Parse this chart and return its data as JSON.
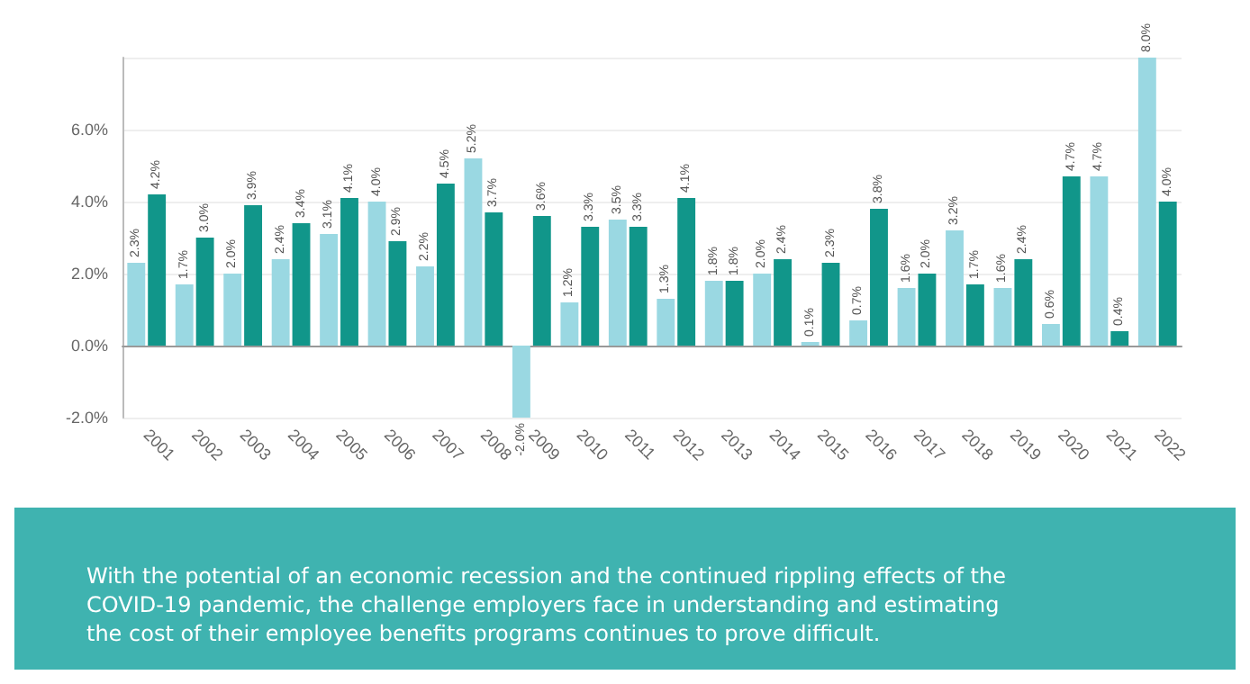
{
  "chart_data": {
    "type": "bar",
    "categories": [
      "2001",
      "2002",
      "2003",
      "2004",
      "2005",
      "2006",
      "2007",
      "2008",
      "2009",
      "2010",
      "2011",
      "2012",
      "2013",
      "2014",
      "2015",
      "2016",
      "2017",
      "2018",
      "2019",
      "2020",
      "2021",
      "2022"
    ],
    "series": [
      {
        "color": "#9ad8e2",
        "values": [
          2.3,
          1.7,
          2.0,
          2.4,
          3.1,
          4.0,
          2.2,
          5.2,
          -2.0,
          1.2,
          3.5,
          1.3,
          1.8,
          2.0,
          0.1,
          0.7,
          1.6,
          3.2,
          1.6,
          0.6,
          4.7,
          8.0
        ],
        "value_labels": [
          "2.3%",
          "1.7%",
          "2.0%",
          "2.4%",
          "3.1%",
          "4.0%",
          "2.2%",
          "5.2%",
          "-2.0%",
          "1.2%",
          "3.5%",
          "1.3%",
          "1.8%",
          "2.0%",
          "0.1%",
          "0.7%",
          "1.6%",
          "3.2%",
          "1.6%",
          "0.6%",
          "4.7%",
          "8.0%"
        ]
      },
      {
        "color": "#11968a",
        "values": [
          4.2,
          3.0,
          3.9,
          3.4,
          4.1,
          2.9,
          4.5,
          3.7,
          3.6,
          3.3,
          3.3,
          4.1,
          1.8,
          2.4,
          2.3,
          3.8,
          2.0,
          1.7,
          2.4,
          4.7,
          0.4,
          4.0
        ],
        "value_labels": [
          "4.2%",
          "3.0%",
          "3.9%",
          "3.4%",
          "4.1%",
          "2.9%",
          "4.5%",
          "3.7%",
          "3.6%",
          "3.3%",
          "3.3%",
          "4.1%",
          "1.8%",
          "2.4%",
          "2.3%",
          "3.8%",
          "2.0%",
          "1.7%",
          "2.4%",
          "4.7%",
          "0.4%",
          "4.0%"
        ]
      }
    ],
    "ylim": [
      -2,
      8
    ],
    "yticks": [
      {
        "value": -2,
        "label": "-2.0%"
      },
      {
        "value": 0,
        "label": "0.0%"
      },
      {
        "value": 2,
        "label": "2.0%"
      },
      {
        "value": 4,
        "label": "4.0%"
      },
      {
        "value": 6,
        "label": "6.0%"
      },
      {
        "value": 8,
        "label": null
      }
    ],
    "grid": "y",
    "annotations": [
      "With the potential of an economic recession and the continued rippling effects of the COVID-19 pandemic, the challenge employers face in understanding and estimating the cost of their employee benefits programs continues to prove difficult."
    ]
  }
}
